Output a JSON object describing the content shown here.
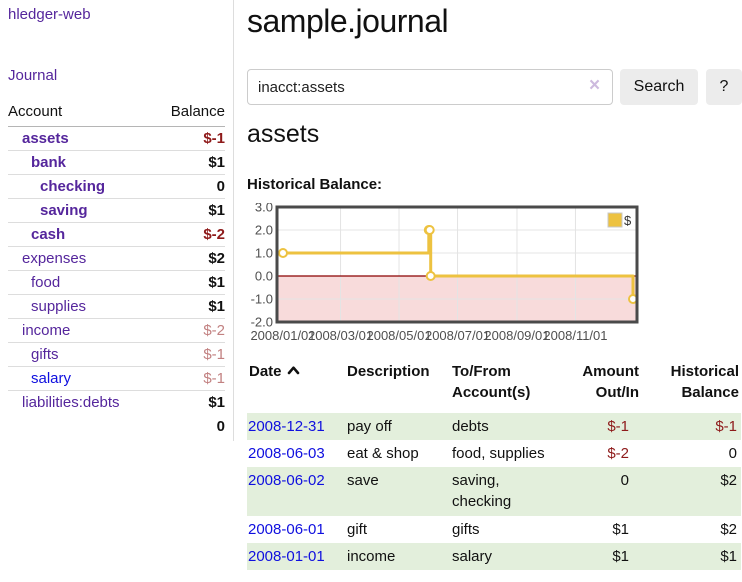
{
  "app": {
    "brand": "hledger-web"
  },
  "colors": {
    "link_visited": "#55269c",
    "link_unvisited": "#0f0fdf",
    "negative_strong": "#8e1a1a",
    "negative_muted": "#c28181",
    "row_stripe": "#e3efdc",
    "chart_line": "#EDC240",
    "chart_negative_fill": "#f8dbdb",
    "chart_zero_line": "#8b0000"
  },
  "sidebar": {
    "journal_label": "Journal",
    "accounts": {
      "header": {
        "account": "Account",
        "balance": "Balance"
      },
      "rows": [
        {
          "name": "assets",
          "balance": "$-1",
          "indent": 1,
          "bold": true,
          "balance_style": "negative-strong",
          "link_color": "visited"
        },
        {
          "name": "bank",
          "balance": "$1",
          "indent": 2,
          "bold": true,
          "balance_style": "normal",
          "link_color": "visited"
        },
        {
          "name": "checking",
          "balance": "0",
          "indent": 3,
          "bold": true,
          "balance_style": "normal",
          "link_color": "visited"
        },
        {
          "name": "saving",
          "balance": "$1",
          "indent": 3,
          "bold": true,
          "balance_style": "normal",
          "link_color": "visited"
        },
        {
          "name": "cash",
          "balance": "$-2",
          "indent": 2,
          "bold": true,
          "balance_style": "negative-strong",
          "link_color": "visited"
        },
        {
          "name": "expenses",
          "balance": "$2",
          "indent": 1,
          "bold": false,
          "balance_style": "normal",
          "link_color": "visited"
        },
        {
          "name": "food",
          "balance": "$1",
          "indent": 2,
          "bold": false,
          "balance_style": "normal",
          "link_color": "visited"
        },
        {
          "name": "supplies",
          "balance": "$1",
          "indent": 2,
          "bold": false,
          "balance_style": "normal",
          "link_color": "visited"
        },
        {
          "name": "income",
          "balance": "$-2",
          "indent": 1,
          "bold": false,
          "balance_style": "negative-muted",
          "link_color": "visited"
        },
        {
          "name": "gifts",
          "balance": "$-1",
          "indent": 2,
          "bold": false,
          "balance_style": "negative-muted",
          "link_color": "visited"
        },
        {
          "name": "salary",
          "balance": "$-1",
          "indent": 2,
          "bold": false,
          "balance_style": "negative-muted",
          "link_color": "unvisited"
        },
        {
          "name": "liabilities:debts",
          "balance": "$1",
          "indent": 1,
          "bold": false,
          "balance_style": "normal",
          "link_color": "visited"
        }
      ],
      "total": "0"
    }
  },
  "header": {
    "title": "sample.journal"
  },
  "search": {
    "value": "inacct:assets",
    "clear_icon": "×",
    "search_label": "Search",
    "help_label": "?"
  },
  "account_view": {
    "heading": "assets",
    "chart_title": "Historical Balance:"
  },
  "chart_data": {
    "type": "line",
    "step": true,
    "series": [
      {
        "name": "$",
        "color": "#EDC240",
        "points": [
          [
            "2008-01-01",
            1
          ],
          [
            "2008-06-01",
            2
          ],
          [
            "2008-06-02",
            2
          ],
          [
            "2008-06-03",
            0
          ],
          [
            "2008-12-31",
            -1
          ]
        ]
      }
    ],
    "x_range": [
      "2008-01-01",
      "2008-12-31"
    ],
    "xticks": [
      "2008/01/01",
      "2008/03/01",
      "2008/05/01",
      "2008/07/01",
      "2008/09/01",
      "2008/11/01"
    ],
    "yticks": [
      3.0,
      2.0,
      1.0,
      0.0,
      -1.0,
      -2.0
    ],
    "ylim": [
      -2,
      3
    ],
    "grid": true,
    "legend": {
      "label": "$",
      "position": "top-right"
    }
  },
  "register": {
    "headers": {
      "date": "Date",
      "description": "Description",
      "accounts": "To/From Account(s)",
      "amount": "Amount Out/In",
      "balance": "Historical Balance"
    },
    "sort_icon": "chevron-up",
    "rows": [
      {
        "date": "2008-12-31",
        "description": "pay off",
        "accounts": "debts",
        "amount": "$-1",
        "amount_negative": true,
        "balance": "$-1",
        "balance_negative": true
      },
      {
        "date": "2008-06-03",
        "description": "eat & shop",
        "accounts": "food, supplies",
        "amount": "$-2",
        "amount_negative": true,
        "balance": "0",
        "balance_negative": false
      },
      {
        "date": "2008-06-02",
        "description": "save",
        "accounts": "saving, checking",
        "amount": "0",
        "amount_negative": false,
        "balance": "$2",
        "balance_negative": false
      },
      {
        "date": "2008-06-01",
        "description": "gift",
        "accounts": "gifts",
        "amount": "$1",
        "amount_negative": false,
        "balance": "$2",
        "balance_negative": false
      },
      {
        "date": "2008-01-01",
        "description": "income",
        "accounts": "salary",
        "amount": "$1",
        "amount_negative": false,
        "balance": "$1",
        "balance_negative": false
      }
    ]
  }
}
